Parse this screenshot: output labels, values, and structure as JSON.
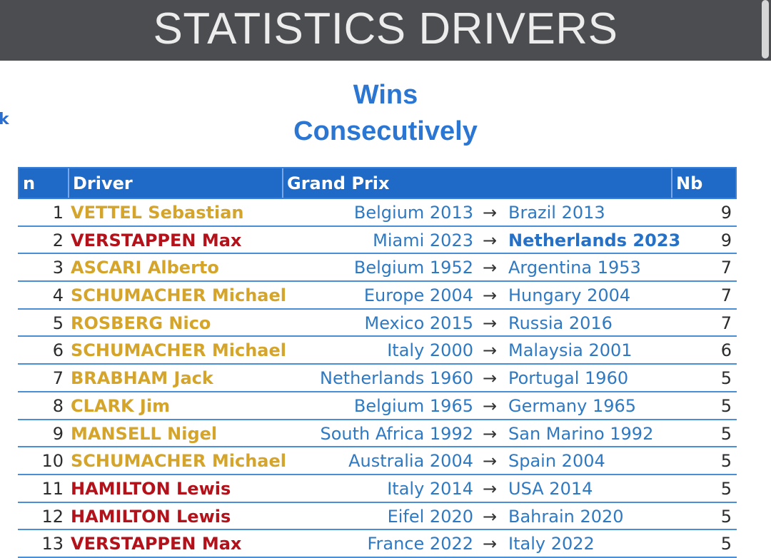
{
  "header": {
    "title": "STATISTICS DRIVERS"
  },
  "side_glyph": "k",
  "headings": {
    "line1": "Wins",
    "line2": "Consecutively"
  },
  "table": {
    "columns": {
      "n": "n",
      "driver": "Driver",
      "grand_prix": "Grand Prix",
      "nb": "Nb"
    },
    "arrow": "→",
    "rows": [
      {
        "n": "1",
        "driver": "VETTEL Sebastian",
        "driver_color": "gold",
        "from": "Belgium 2013",
        "to": "Brazil 2013",
        "to_bold": false,
        "nb": "9"
      },
      {
        "n": "2",
        "driver": "VERSTAPPEN Max",
        "driver_color": "red",
        "from": "Miami 2023",
        "to": "Netherlands 2023",
        "to_bold": true,
        "nb": "9"
      },
      {
        "n": "3",
        "driver": "ASCARI Alberto",
        "driver_color": "gold",
        "from": "Belgium 1952",
        "to": "Argentina 1953",
        "to_bold": false,
        "nb": "7"
      },
      {
        "n": "4",
        "driver": "SCHUMACHER Michael",
        "driver_color": "gold",
        "from": "Europe 2004",
        "to": "Hungary 2004",
        "to_bold": false,
        "nb": "7"
      },
      {
        "n": "5",
        "driver": "ROSBERG Nico",
        "driver_color": "gold",
        "from": "Mexico 2015",
        "to": "Russia 2016",
        "to_bold": false,
        "nb": "7"
      },
      {
        "n": "6",
        "driver": "SCHUMACHER Michael",
        "driver_color": "gold",
        "from": "Italy 2000",
        "to": "Malaysia 2001",
        "to_bold": false,
        "nb": "6"
      },
      {
        "n": "7",
        "driver": "BRABHAM Jack",
        "driver_color": "gold",
        "from": "Netherlands 1960",
        "to": "Portugal 1960",
        "to_bold": false,
        "nb": "5"
      },
      {
        "n": "8",
        "driver": "CLARK Jim",
        "driver_color": "gold",
        "from": "Belgium 1965",
        "to": "Germany 1965",
        "to_bold": false,
        "nb": "5"
      },
      {
        "n": "9",
        "driver": "MANSELL Nigel",
        "driver_color": "gold",
        "from": "South Africa 1992",
        "to": "San Marino 1992",
        "to_bold": false,
        "nb": "5"
      },
      {
        "n": "10",
        "driver": "SCHUMACHER Michael",
        "driver_color": "gold",
        "from": "Australia 2004",
        "to": "Spain 2004",
        "to_bold": false,
        "nb": "5"
      },
      {
        "n": "11",
        "driver": "HAMILTON Lewis",
        "driver_color": "red",
        "from": "Italy 2014",
        "to": "USA 2014",
        "to_bold": false,
        "nb": "5"
      },
      {
        "n": "12",
        "driver": "HAMILTON Lewis",
        "driver_color": "red",
        "from": "Eifel 2020",
        "to": "Bahrain 2020",
        "to_bold": false,
        "nb": "5"
      },
      {
        "n": "13",
        "driver": "VERSTAPPEN Max",
        "driver_color": "red",
        "from": "France 2022",
        "to": "Italy 2022",
        "to_bold": false,
        "nb": "5"
      }
    ]
  },
  "colors": {
    "topbar": "#4b4d50",
    "header_blue": "#1f6ac6",
    "link_blue": "#2e79c2",
    "gold": "#d4a52a",
    "red": "#b3121b"
  }
}
